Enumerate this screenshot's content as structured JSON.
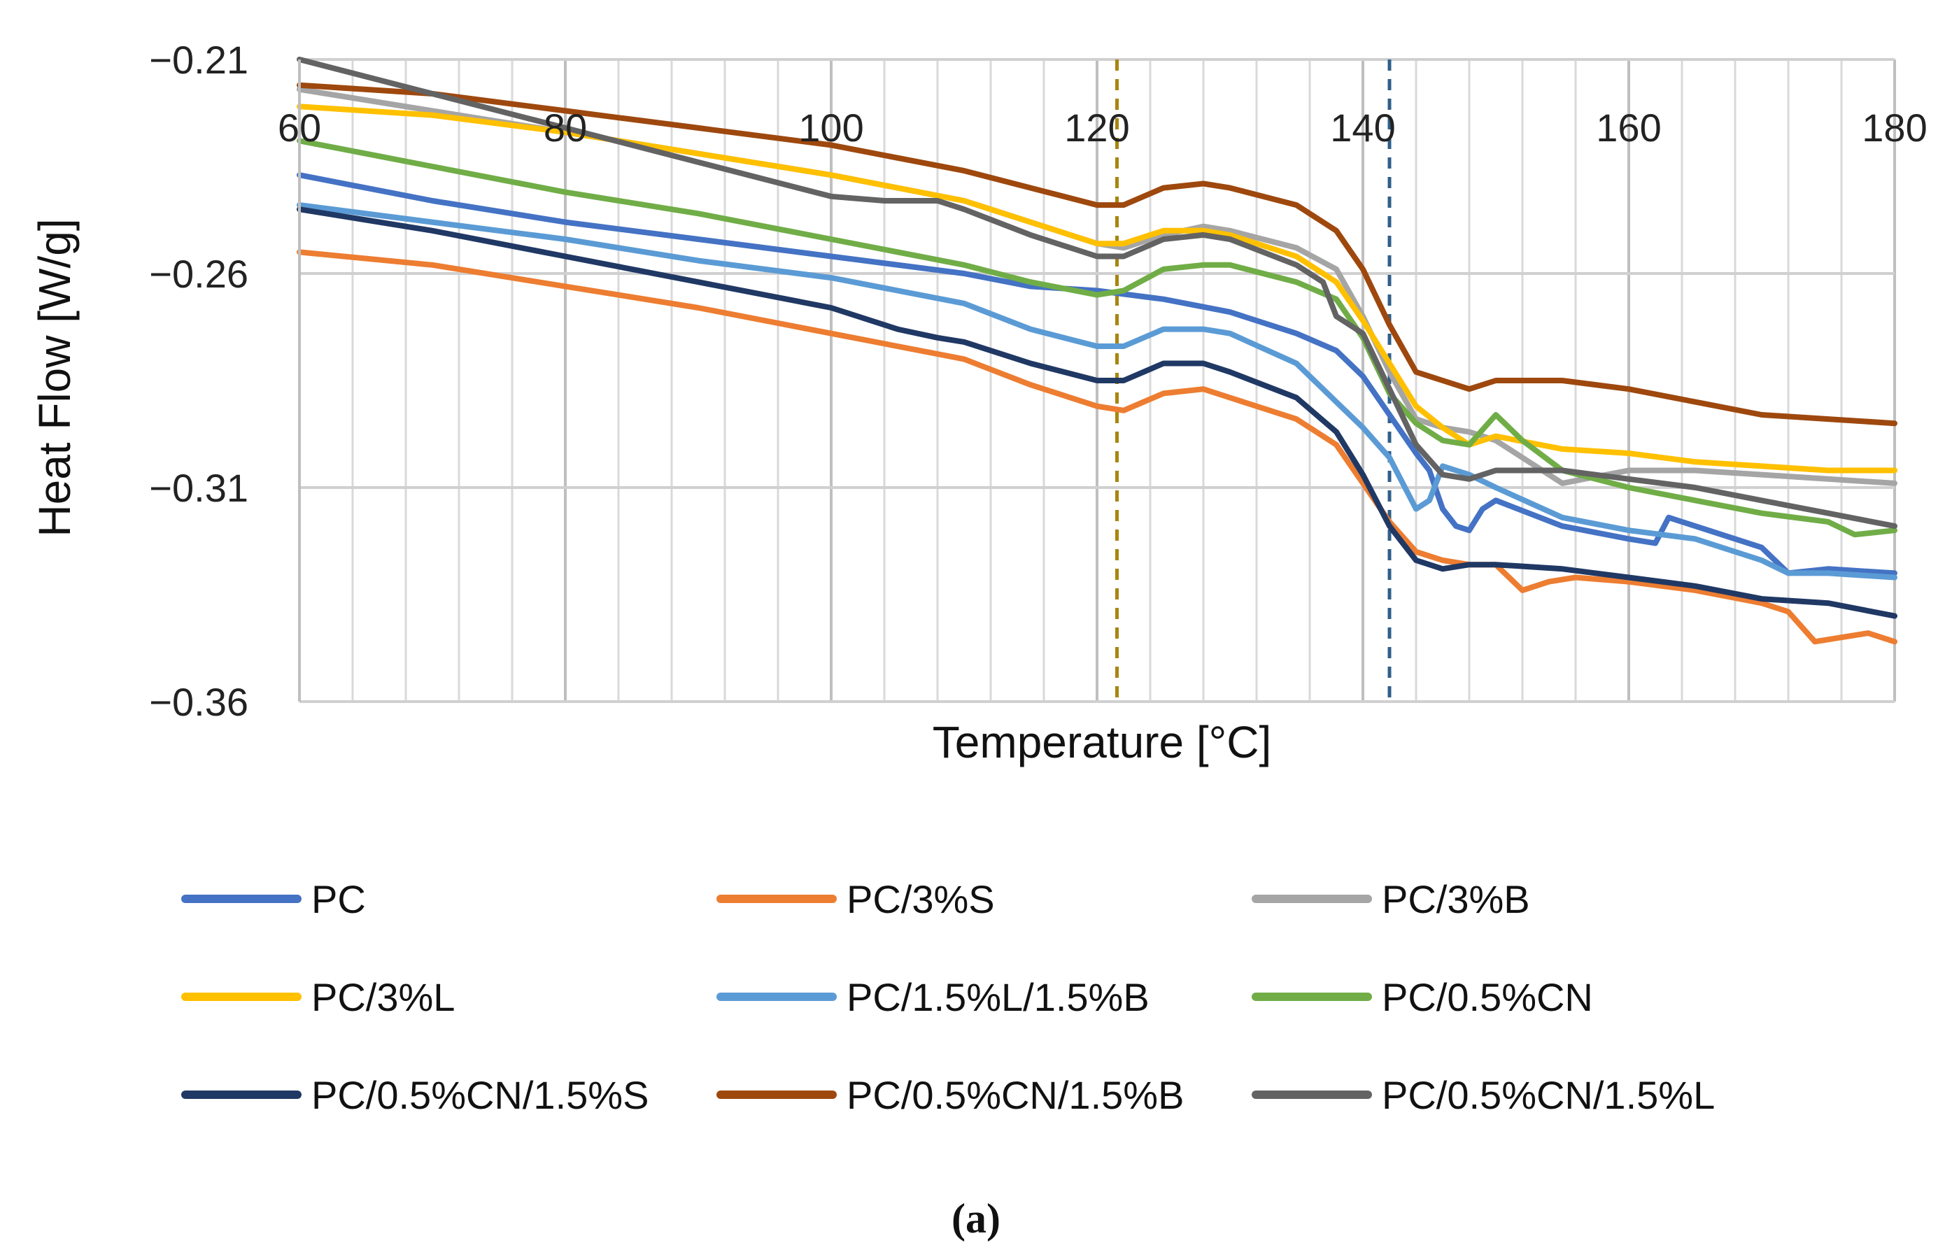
{
  "chart_data": {
    "type": "line",
    "xlabel": "Temperature [°C]",
    "ylabel": "Heat Flow [W/g]",
    "xlim": [
      60,
      180
    ],
    "ylim": [
      -0.36,
      -0.21
    ],
    "x_ticks": [
      "60",
      "80",
      "100",
      "120",
      "140",
      "160",
      "180"
    ],
    "y_ticks": [
      "−0.21",
      "−0.26",
      "−0.31",
      "−0.36"
    ],
    "grid": true,
    "legend_position": "bottom",
    "caption": "(a)",
    "reference_lines": [
      {
        "x": 121.5,
        "color": "#A8860E",
        "style": "dashed"
      },
      {
        "x": 142,
        "color": "#2F5F8A",
        "style": "dashed"
      }
    ],
    "series": [
      {
        "name": "PC",
        "color": "#4472C4",
        "x": [
          60,
          70,
          80,
          90,
          100,
          110,
          115,
          120,
          125,
          130,
          135,
          138,
          140,
          142,
          144,
          145,
          146,
          147,
          148,
          149,
          150,
          155,
          160,
          162,
          163,
          165,
          170,
          172,
          175,
          180
        ],
        "y": [
          -0.237,
          -0.243,
          -0.248,
          -0.252,
          -0.256,
          -0.26,
          -0.263,
          -0.264,
          -0.266,
          -0.269,
          -0.274,
          -0.278,
          -0.284,
          -0.293,
          -0.302,
          -0.306,
          -0.315,
          -0.319,
          -0.32,
          -0.315,
          -0.313,
          -0.319,
          -0.322,
          -0.323,
          -0.317,
          -0.319,
          -0.324,
          -0.33,
          -0.329,
          -0.33
        ]
      },
      {
        "name": "PC/3%S",
        "color": "#ED7D31",
        "x": [
          60,
          70,
          80,
          90,
          100,
          110,
          115,
          120,
          122,
          125,
          128,
          130,
          135,
          138,
          140,
          142,
          144,
          146,
          148,
          150,
          152,
          154,
          156,
          160,
          165,
          170,
          172,
          174,
          176,
          178,
          180
        ],
        "y": [
          -0.255,
          -0.258,
          -0.263,
          -0.268,
          -0.274,
          -0.28,
          -0.286,
          -0.291,
          -0.292,
          -0.288,
          -0.287,
          -0.289,
          -0.294,
          -0.3,
          -0.309,
          -0.318,
          -0.325,
          -0.327,
          -0.328,
          -0.328,
          -0.334,
          -0.332,
          -0.331,
          -0.332,
          -0.334,
          -0.337,
          -0.339,
          -0.346,
          -0.345,
          -0.344,
          -0.346
        ]
      },
      {
        "name": "PC/3%B",
        "color": "#A5A5A5",
        "x": [
          60,
          70,
          80,
          90,
          100,
          110,
          115,
          120,
          122,
          125,
          128,
          130,
          135,
          138,
          140,
          142,
          144,
          146,
          148,
          150,
          155,
          160,
          165,
          170,
          175,
          180
        ],
        "y": [
          -0.217,
          -0.222,
          -0.227,
          -0.232,
          -0.237,
          -0.243,
          -0.248,
          -0.253,
          -0.254,
          -0.251,
          -0.249,
          -0.25,
          -0.254,
          -0.259,
          -0.27,
          -0.283,
          -0.294,
          -0.296,
          -0.297,
          -0.299,
          -0.309,
          -0.306,
          -0.306,
          -0.307,
          -0.308,
          -0.309
        ]
      },
      {
        "name": "PC/3%L",
        "color": "#FFC000",
        "x": [
          60,
          70,
          80,
          90,
          100,
          110,
          115,
          120,
          122,
          125,
          128,
          130,
          135,
          138,
          140,
          142,
          144,
          146,
          148,
          150,
          155,
          160,
          165,
          170,
          175,
          180
        ],
        "y": [
          -0.221,
          -0.223,
          -0.227,
          -0.232,
          -0.237,
          -0.243,
          -0.248,
          -0.253,
          -0.253,
          -0.25,
          -0.25,
          -0.251,
          -0.256,
          -0.262,
          -0.271,
          -0.281,
          -0.291,
          -0.296,
          -0.3,
          -0.298,
          -0.301,
          -0.302,
          -0.304,
          -0.305,
          -0.306,
          -0.306
        ]
      },
      {
        "name": "PC/1.5%L/1.5%B",
        "color": "#5B9BD5",
        "x": [
          60,
          70,
          80,
          90,
          100,
          110,
          115,
          120,
          122,
          125,
          128,
          130,
          135,
          138,
          140,
          142,
          144,
          145,
          146,
          147,
          148,
          150,
          155,
          160,
          165,
          170,
          172,
          175,
          180
        ],
        "y": [
          -0.244,
          -0.248,
          -0.252,
          -0.257,
          -0.261,
          -0.267,
          -0.273,
          -0.277,
          -0.277,
          -0.273,
          -0.273,
          -0.274,
          -0.281,
          -0.29,
          -0.296,
          -0.303,
          -0.315,
          -0.313,
          -0.305,
          -0.306,
          -0.307,
          -0.31,
          -0.317,
          -0.32,
          -0.322,
          -0.327,
          -0.33,
          -0.33,
          -0.331
        ]
      },
      {
        "name": "PC/0.5%CN",
        "color": "#70AD47",
        "x": [
          60,
          70,
          80,
          90,
          100,
          110,
          115,
          120,
          122,
          125,
          128,
          130,
          135,
          138,
          140,
          142,
          144,
          146,
          148,
          150,
          152,
          155,
          160,
          165,
          170,
          175,
          177,
          180
        ],
        "y": [
          -0.229,
          -0.235,
          -0.241,
          -0.246,
          -0.252,
          -0.258,
          -0.262,
          -0.265,
          -0.264,
          -0.259,
          -0.258,
          -0.258,
          -0.262,
          -0.266,
          -0.275,
          -0.288,
          -0.295,
          -0.299,
          -0.3,
          -0.293,
          -0.299,
          -0.306,
          -0.31,
          -0.313,
          -0.316,
          -0.318,
          -0.321,
          -0.32
        ]
      },
      {
        "name": "PC/0.5%CN/1.5%S",
        "color": "#203864",
        "x": [
          60,
          70,
          80,
          90,
          100,
          105,
          108,
          110,
          115,
          120,
          122,
          125,
          128,
          130,
          135,
          138,
          140,
          142,
          144,
          146,
          148,
          150,
          155,
          160,
          165,
          170,
          175,
          180
        ],
        "y": [
          -0.245,
          -0.25,
          -0.256,
          -0.262,
          -0.268,
          -0.273,
          -0.275,
          -0.276,
          -0.281,
          -0.285,
          -0.285,
          -0.281,
          -0.281,
          -0.283,
          -0.289,
          -0.297,
          -0.307,
          -0.319,
          -0.327,
          -0.329,
          -0.328,
          -0.328,
          -0.329,
          -0.331,
          -0.333,
          -0.336,
          -0.337,
          -0.34
        ]
      },
      {
        "name": "PC/0.5%CN/1.5%B",
        "color": "#9E480E",
        "x": [
          60,
          70,
          80,
          90,
          100,
          110,
          115,
          120,
          122,
          125,
          128,
          130,
          135,
          138,
          140,
          142,
          144,
          146,
          148,
          150,
          155,
          160,
          165,
          170,
          175,
          180
        ],
        "y": [
          -0.216,
          -0.218,
          -0.222,
          -0.226,
          -0.23,
          -0.236,
          -0.24,
          -0.244,
          -0.244,
          -0.24,
          -0.239,
          -0.24,
          -0.244,
          -0.25,
          -0.259,
          -0.272,
          -0.283,
          -0.285,
          -0.287,
          -0.285,
          -0.285,
          -0.287,
          -0.29,
          -0.293,
          -0.294,
          -0.295
        ]
      },
      {
        "name": "PC/0.5%CN/1.5%L",
        "color": "#636363",
        "x": [
          60,
          70,
          80,
          90,
          100,
          104,
          108,
          110,
          115,
          120,
          122,
          125,
          128,
          130,
          135,
          137,
          138,
          140,
          142,
          144,
          146,
          148,
          150,
          155,
          160,
          165,
          170,
          175,
          180
        ],
        "y": [
          -0.21,
          -0.218,
          -0.226,
          -0.234,
          -0.242,
          -0.243,
          -0.243,
          -0.245,
          -0.251,
          -0.256,
          -0.256,
          -0.252,
          -0.251,
          -0.252,
          -0.258,
          -0.262,
          -0.27,
          -0.274,
          -0.287,
          -0.3,
          -0.307,
          -0.308,
          -0.306,
          -0.306,
          -0.308,
          -0.31,
          -0.313,
          -0.316,
          -0.319
        ]
      }
    ]
  }
}
